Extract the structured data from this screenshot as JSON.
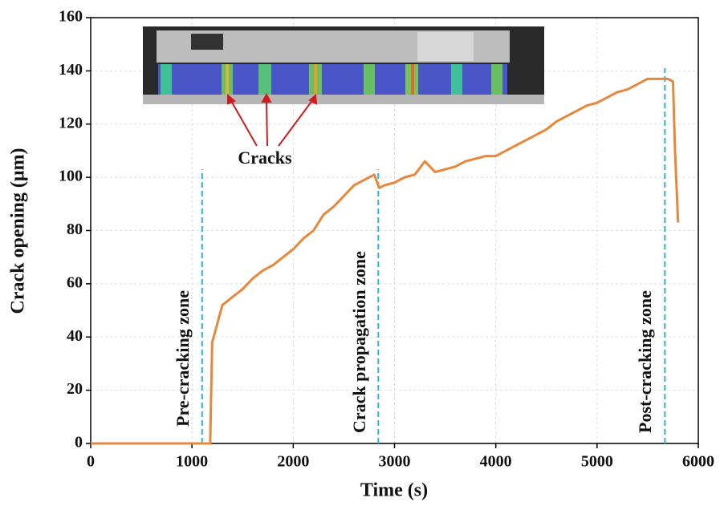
{
  "chart_data": {
    "type": "line",
    "x_label": "Time (s)",
    "y_label": "Crack opening (μm)",
    "x": [
      0,
      1150,
      1180,
      1190,
      1200,
      1250,
      1300,
      1400,
      1500,
      1600,
      1700,
      1800,
      1900,
      2000,
      2100,
      2200,
      2300,
      2400,
      2500,
      2600,
      2700,
      2800,
      2850,
      2900,
      3000,
      3100,
      3200,
      3300,
      3400,
      3500,
      3600,
      3700,
      3800,
      3900,
      4000,
      4100,
      4200,
      4300,
      4400,
      4500,
      4600,
      4700,
      4800,
      4900,
      5000,
      5100,
      5200,
      5300,
      5400,
      5500,
      5600,
      5700,
      5750,
      5770,
      5800
    ],
    "series": [
      {
        "color": "#e8873a",
        "values": [
          0,
          0,
          0,
          20,
          38,
          45,
          52,
          55,
          58,
          62,
          65,
          67,
          70,
          73,
          77,
          80,
          86,
          89,
          93,
          97,
          99,
          101,
          96,
          97,
          98,
          100,
          101,
          106,
          102,
          103,
          104,
          106,
          107,
          108,
          108,
          110,
          112,
          114,
          116,
          118,
          121,
          123,
          125,
          127,
          128,
          130,
          132,
          133,
          135,
          137,
          137,
          137,
          136,
          110,
          83
        ]
      }
    ],
    "xlim": [
      0,
      6000
    ],
    "xticks": [
      0,
      1000,
      2000,
      3000,
      4000,
      5000,
      6000
    ],
    "ylim": [
      0,
      160
    ],
    "yticks": [
      0,
      20,
      40,
      60,
      80,
      100,
      120,
      140,
      160
    ],
    "grid": true,
    "vlines": {
      "color": "#2eb4d0",
      "x": [
        1100,
        2840,
        5670
      ],
      "top": [
        103,
        103,
        141
      ]
    },
    "annotations": [
      "Pre-cracking zone",
      "Crack propagation zone",
      "Post-cracking zone",
      "Cracks"
    ]
  }
}
